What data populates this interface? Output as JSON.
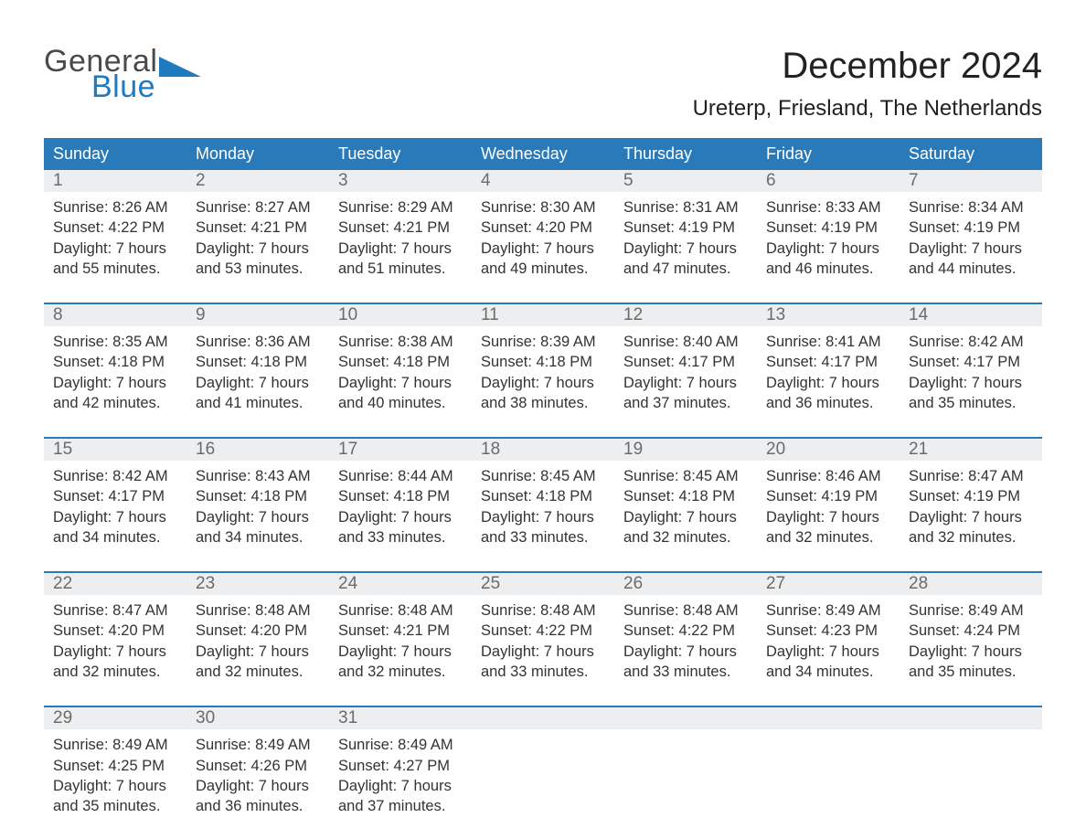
{
  "logo": {
    "word1": "General",
    "word2": "Blue"
  },
  "title": "December 2024",
  "location": "Ureterp, Friesland, The Netherlands",
  "colors": {
    "header_blue": "#2a7ab9",
    "row_header_bg": "#eceeef",
    "row_header_text": "#6b6b6b",
    "logo_gray": "#4a4a4a",
    "logo_blue": "#1f7ac0",
    "page_bg": "#ffffff"
  },
  "weekdays": [
    "Sunday",
    "Monday",
    "Tuesday",
    "Wednesday",
    "Thursday",
    "Friday",
    "Saturday"
  ],
  "weeks": [
    [
      {
        "n": "1",
        "sr": "8:26 AM",
        "ss": "4:22 PM",
        "d1": "Daylight: 7 hours",
        "d2": "and 55 minutes."
      },
      {
        "n": "2",
        "sr": "8:27 AM",
        "ss": "4:21 PM",
        "d1": "Daylight: 7 hours",
        "d2": "and 53 minutes."
      },
      {
        "n": "3",
        "sr": "8:29 AM",
        "ss": "4:21 PM",
        "d1": "Daylight: 7 hours",
        "d2": "and 51 minutes."
      },
      {
        "n": "4",
        "sr": "8:30 AM",
        "ss": "4:20 PM",
        "d1": "Daylight: 7 hours",
        "d2": "and 49 minutes."
      },
      {
        "n": "5",
        "sr": "8:31 AM",
        "ss": "4:19 PM",
        "d1": "Daylight: 7 hours",
        "d2": "and 47 minutes."
      },
      {
        "n": "6",
        "sr": "8:33 AM",
        "ss": "4:19 PM",
        "d1": "Daylight: 7 hours",
        "d2": "and 46 minutes."
      },
      {
        "n": "7",
        "sr": "8:34 AM",
        "ss": "4:19 PM",
        "d1": "Daylight: 7 hours",
        "d2": "and 44 minutes."
      }
    ],
    [
      {
        "n": "8",
        "sr": "8:35 AM",
        "ss": "4:18 PM",
        "d1": "Daylight: 7 hours",
        "d2": "and 42 minutes."
      },
      {
        "n": "9",
        "sr": "8:36 AM",
        "ss": "4:18 PM",
        "d1": "Daylight: 7 hours",
        "d2": "and 41 minutes."
      },
      {
        "n": "10",
        "sr": "8:38 AM",
        "ss": "4:18 PM",
        "d1": "Daylight: 7 hours",
        "d2": "and 40 minutes."
      },
      {
        "n": "11",
        "sr": "8:39 AM",
        "ss": "4:18 PM",
        "d1": "Daylight: 7 hours",
        "d2": "and 38 minutes."
      },
      {
        "n": "12",
        "sr": "8:40 AM",
        "ss": "4:17 PM",
        "d1": "Daylight: 7 hours",
        "d2": "and 37 minutes."
      },
      {
        "n": "13",
        "sr": "8:41 AM",
        "ss": "4:17 PM",
        "d1": "Daylight: 7 hours",
        "d2": "and 36 minutes."
      },
      {
        "n": "14",
        "sr": "8:42 AM",
        "ss": "4:17 PM",
        "d1": "Daylight: 7 hours",
        "d2": "and 35 minutes."
      }
    ],
    [
      {
        "n": "15",
        "sr": "8:42 AM",
        "ss": "4:17 PM",
        "d1": "Daylight: 7 hours",
        "d2": "and 34 minutes."
      },
      {
        "n": "16",
        "sr": "8:43 AM",
        "ss": "4:18 PM",
        "d1": "Daylight: 7 hours",
        "d2": "and 34 minutes."
      },
      {
        "n": "17",
        "sr": "8:44 AM",
        "ss": "4:18 PM",
        "d1": "Daylight: 7 hours",
        "d2": "and 33 minutes."
      },
      {
        "n": "18",
        "sr": "8:45 AM",
        "ss": "4:18 PM",
        "d1": "Daylight: 7 hours",
        "d2": "and 33 minutes."
      },
      {
        "n": "19",
        "sr": "8:45 AM",
        "ss": "4:18 PM",
        "d1": "Daylight: 7 hours",
        "d2": "and 32 minutes."
      },
      {
        "n": "20",
        "sr": "8:46 AM",
        "ss": "4:19 PM",
        "d1": "Daylight: 7 hours",
        "d2": "and 32 minutes."
      },
      {
        "n": "21",
        "sr": "8:47 AM",
        "ss": "4:19 PM",
        "d1": "Daylight: 7 hours",
        "d2": "and 32 minutes."
      }
    ],
    [
      {
        "n": "22",
        "sr": "8:47 AM",
        "ss": "4:20 PM",
        "d1": "Daylight: 7 hours",
        "d2": "and 32 minutes."
      },
      {
        "n": "23",
        "sr": "8:48 AM",
        "ss": "4:20 PM",
        "d1": "Daylight: 7 hours",
        "d2": "and 32 minutes."
      },
      {
        "n": "24",
        "sr": "8:48 AM",
        "ss": "4:21 PM",
        "d1": "Daylight: 7 hours",
        "d2": "and 32 minutes."
      },
      {
        "n": "25",
        "sr": "8:48 AM",
        "ss": "4:22 PM",
        "d1": "Daylight: 7 hours",
        "d2": "and 33 minutes."
      },
      {
        "n": "26",
        "sr": "8:48 AM",
        "ss": "4:22 PM",
        "d1": "Daylight: 7 hours",
        "d2": "and 33 minutes."
      },
      {
        "n": "27",
        "sr": "8:49 AM",
        "ss": "4:23 PM",
        "d1": "Daylight: 7 hours",
        "d2": "and 34 minutes."
      },
      {
        "n": "28",
        "sr": "8:49 AM",
        "ss": "4:24 PM",
        "d1": "Daylight: 7 hours",
        "d2": "and 35 minutes."
      }
    ],
    [
      {
        "n": "29",
        "sr": "8:49 AM",
        "ss": "4:25 PM",
        "d1": "Daylight: 7 hours",
        "d2": "and 35 minutes."
      },
      {
        "n": "30",
        "sr": "8:49 AM",
        "ss": "4:26 PM",
        "d1": "Daylight: 7 hours",
        "d2": "and 36 minutes."
      },
      {
        "n": "31",
        "sr": "8:49 AM",
        "ss": "4:27 PM",
        "d1": "Daylight: 7 hours",
        "d2": "and 37 minutes."
      },
      null,
      null,
      null,
      null
    ]
  ]
}
